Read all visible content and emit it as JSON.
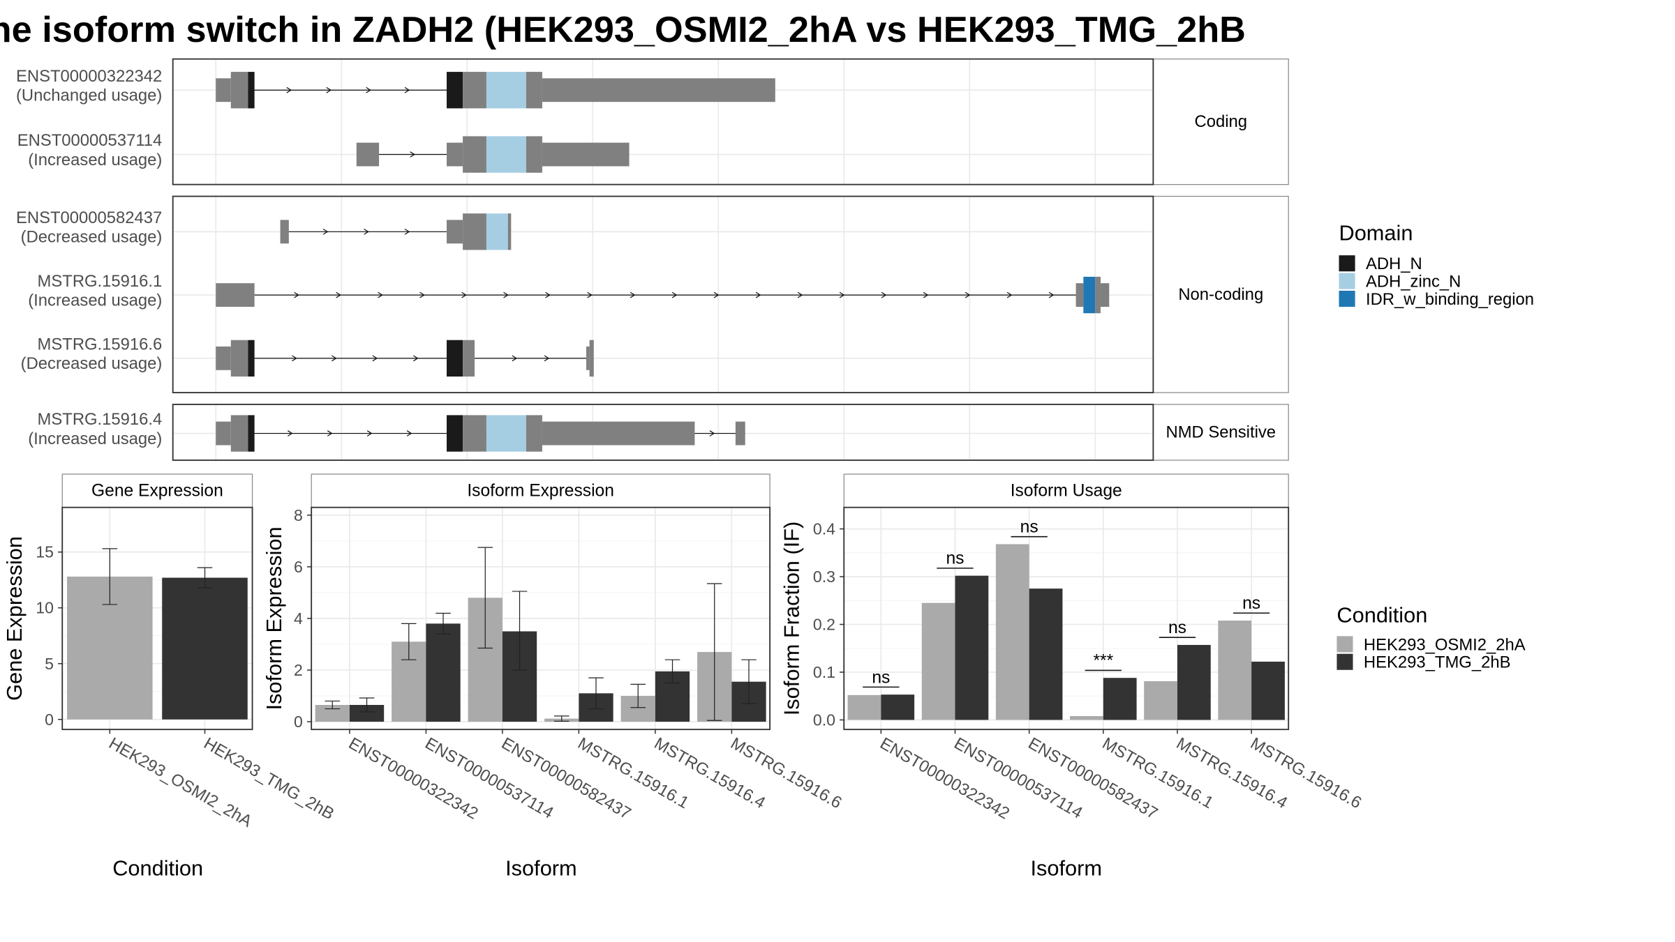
{
  "title": "he isoform switch in ZADH2 (HEK293_OSMI2_2hA vs HEK293_TMG_2hB",
  "colors": {
    "exon": "#808080",
    "ADH_N": "#1a1a1a",
    "ADH_zinc_N": "#a6cee3",
    "IDR_w_binding_region": "#1f78b4",
    "HEK293_OSMI2_2hA": "#aaaaaa",
    "HEK293_TMG_2hB": "#333333"
  },
  "transcript_panels": [
    {
      "label": "Coding",
      "transcripts": [
        {
          "id": "ENST00000322342",
          "status": "(Unchanged usage)"
        },
        {
          "id": "ENST00000537114",
          "status": "(Increased usage)"
        }
      ]
    },
    {
      "label": "Non-coding",
      "transcripts": [
        {
          "id": "ENST00000582437",
          "status": "(Decreased usage)"
        },
        {
          "id": "MSTRG.15916.1",
          "status": "(Increased usage)"
        },
        {
          "id": "MSTRG.15916.6",
          "status": "(Decreased usage)"
        }
      ]
    },
    {
      "label": "NMD Sensitive",
      "transcripts": [
        {
          "id": "MSTRG.15916.4",
          "status": "(Increased usage)"
        }
      ]
    }
  ],
  "legend_domain": {
    "title": "Domain",
    "items": [
      {
        "label": "ADH_N",
        "color": "#1a1a1a"
      },
      {
        "label": "ADH_zinc_N",
        "color": "#a6cee3"
      },
      {
        "label": "IDR_w_binding_region",
        "color": "#1f78b4"
      }
    ]
  },
  "legend_condition": {
    "title": "Condition",
    "items": [
      {
        "label": "HEK293_OSMI2_2hA",
        "color": "#aaaaaa"
      },
      {
        "label": "HEK293_TMG_2hB",
        "color": "#333333"
      }
    ]
  },
  "chart_data": [
    {
      "type": "bar",
      "title": "Gene Expression",
      "xlabel": "Condition",
      "ylabel": "Gene Expression",
      "ylim": [
        -0.9,
        19.0
      ],
      "yticks": [
        0,
        5,
        10,
        15
      ],
      "categories": [
        "HEK293_OSMI2_2hA",
        "HEK293_TMG_2hB"
      ],
      "values": [
        12.8,
        12.7
      ],
      "error_bars": [
        [
          10.3,
          15.3
        ],
        [
          11.8,
          13.6
        ]
      ]
    },
    {
      "type": "bar",
      "title": "Isoform Expression",
      "xlabel": "Isoform",
      "ylabel": "Isoform Expression",
      "ylim": [
        -0.3,
        8.3
      ],
      "yticks": [
        0,
        2,
        4,
        6,
        8
      ],
      "categories": [
        "ENST00000322342",
        "ENST00000537114",
        "ENST00000582437",
        "MSTRG.15916.1",
        "MSTRG.15916.4",
        "MSTRG.15916.6"
      ],
      "series": [
        {
          "name": "HEK293_OSMI2_2hA",
          "values": [
            0.65,
            3.1,
            4.8,
            0.12,
            1.0,
            2.7
          ],
          "error_bars": [
            [
              0.5,
              0.8
            ],
            [
              2.4,
              3.8
            ],
            [
              2.85,
              6.75
            ],
            [
              0.02,
              0.22
            ],
            [
              0.55,
              1.45
            ],
            [
              0.05,
              5.35
            ]
          ]
        },
        {
          "name": "HEK293_TMG_2hB",
          "values": [
            0.65,
            3.8,
            3.5,
            1.1,
            1.95,
            1.55
          ],
          "error_bars": [
            [
              0.38,
              0.92
            ],
            [
              3.4,
              4.2
            ],
            [
              2.0,
              5.05
            ],
            [
              0.5,
              1.7
            ],
            [
              1.5,
              2.4
            ],
            [
              0.7,
              2.4
            ]
          ]
        }
      ]
    },
    {
      "type": "bar",
      "title": "Isoform Usage",
      "xlabel": "Isoform",
      "ylabel": "Isoform Fraction (IF)",
      "ylim": [
        -0.02,
        0.445
      ],
      "yticks": [
        "0.0",
        "0.1",
        "0.2",
        "0.3",
        "0.4"
      ],
      "categories": [
        "ENST00000322342",
        "ENST00000537114",
        "ENST00000582437",
        "MSTRG.15916.1",
        "MSTRG.15916.4",
        "MSTRG.15916.6"
      ],
      "series": [
        {
          "name": "HEK293_OSMI2_2hA",
          "values": [
            0.052,
            0.245,
            0.368,
            0.008,
            0.081,
            0.208
          ]
        },
        {
          "name": "HEK293_TMG_2hB",
          "values": [
            0.053,
            0.302,
            0.275,
            0.088,
            0.157,
            0.122
          ]
        }
      ],
      "significance": [
        "ns",
        "ns",
        "ns",
        "***",
        "ns",
        "ns"
      ]
    }
  ]
}
